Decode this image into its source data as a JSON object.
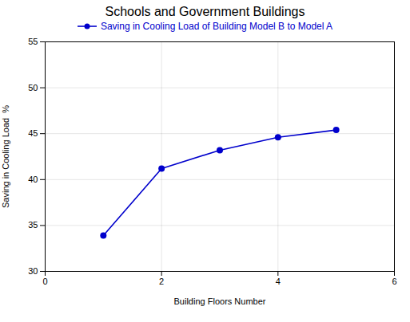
{
  "chart_data": {
    "type": "line",
    "title": "Schools and Government Buildings",
    "xlabel": "Building Floors Number",
    "ylabel": "Saving in Cooling Load  %",
    "x": [
      1,
      2,
      3,
      4,
      5
    ],
    "series": [
      {
        "name": "Saving in Cooling Load of Building Model B to Model A",
        "color": "#0000CC",
        "marker": "circle",
        "values": [
          33.9,
          41.2,
          43.2,
          44.6,
          45.4
        ]
      }
    ],
    "xlim": [
      0,
      6
    ],
    "ylim": [
      30,
      55
    ],
    "xticks": [
      0,
      2,
      4,
      6
    ],
    "yticks": [
      30,
      35,
      40,
      45,
      50,
      55
    ],
    "grid": true,
    "legend": "top"
  }
}
